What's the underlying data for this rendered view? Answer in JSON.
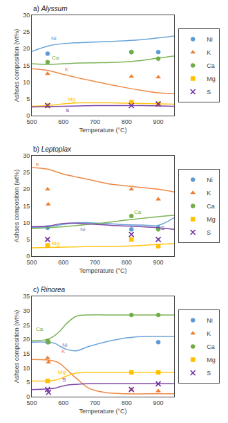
{
  "chart_data": [
    {
      "type": "line",
      "title": "a) Alyssum",
      "xlabel": "Temperature (°C)",
      "ylabel": "Ashses composition (wt%)",
      "xlim": [
        500,
        950
      ],
      "xticks": [
        500,
        600,
        700,
        800,
        900
      ],
      "ylim": [
        0,
        30
      ],
      "yticks": [
        0,
        5,
        10,
        15,
        20,
        25,
        30
      ],
      "grid": false,
      "legend": "right",
      "series": [
        {
          "name": "Ni",
          "type": "line",
          "line_style": "spline",
          "color": "#5b9bd5",
          "x": [
            500,
            560,
            600,
            650,
            700,
            750,
            800,
            850,
            900,
            950
          ],
          "values": [
            19.2,
            21.0,
            21.5,
            21.8,
            22.0,
            22.2,
            22.4,
            22.7,
            23.2,
            23.8
          ]
        },
        {
          "name": "Ni",
          "type": "scatter",
          "marker": "circle",
          "color": "#5b9bd5",
          "x": [
            550,
            815,
            900
          ],
          "values": [
            18.5,
            19.0,
            19.0
          ]
        },
        {
          "name": "K",
          "type": "line",
          "line_style": "spline",
          "color": "#ed7d31",
          "x": [
            500,
            550,
            600,
            650,
            700,
            750,
            800,
            850,
            900,
            950
          ],
          "values": [
            14.0,
            13.5,
            12.3,
            11.2,
            10.2,
            9.2,
            8.3,
            7.5,
            6.8,
            6.5
          ]
        },
        {
          "name": "K",
          "type": "scatter",
          "marker": "triangle",
          "color": "#ed7d31",
          "x": [
            550,
            815,
            900
          ],
          "values": [
            12.5,
            11.7,
            11.5
          ]
        },
        {
          "name": "Ca",
          "type": "line",
          "line_style": "spline",
          "color": "#70ad47",
          "x": [
            500,
            550,
            600,
            650,
            700,
            750,
            800,
            850,
            900,
            950
          ],
          "values": [
            15.5,
            15.3,
            15.5,
            15.7,
            15.8,
            15.9,
            16.1,
            16.5,
            17.2,
            17.8
          ]
        },
        {
          "name": "Ca",
          "type": "scatter",
          "marker": "circle",
          "color": "#70ad47",
          "x": [
            550,
            815,
            900
          ],
          "values": [
            16.0,
            19.0,
            17.0
          ]
        },
        {
          "name": "Mg",
          "type": "line",
          "line_style": "spline",
          "color": "#ffc000",
          "x": [
            500,
            550,
            600,
            650,
            700,
            750,
            800,
            850,
            900,
            950
          ],
          "values": [
            2.8,
            3.0,
            3.5,
            3.8,
            3.8,
            3.8,
            3.7,
            3.6,
            3.5,
            3.4
          ]
        },
        {
          "name": "Mg",
          "type": "scatter",
          "marker": "square",
          "color": "#ffc000",
          "x": [
            550,
            815,
            900
          ],
          "values": [
            3.0,
            4.0,
            3.5
          ]
        },
        {
          "name": "S",
          "type": "line",
          "line_style": "spline",
          "color": "#7030a0",
          "x": [
            500,
            550,
            600,
            650,
            700,
            750,
            800,
            850,
            900,
            950
          ],
          "values": [
            2.6,
            2.7,
            2.8,
            2.9,
            3.0,
            3.0,
            3.0,
            3.0,
            2.9,
            2.8
          ]
        },
        {
          "name": "S",
          "type": "scatter",
          "marker": "x",
          "color": "#7030a0",
          "x": [
            550,
            815,
            900
          ],
          "values": [
            3.0,
            3.0,
            3.5
          ]
        }
      ],
      "annotations": [
        {
          "text": "Ni",
          "x": 557,
          "y": 23.0,
          "color": "#5b9bd5"
        },
        {
          "text": "K",
          "x": 600,
          "y": 13.8,
          "color": "#ed7d31"
        },
        {
          "text": "Ca",
          "x": 558,
          "y": 17.2,
          "color": "#70ad47"
        },
        {
          "text": "Mg",
          "x": 610,
          "y": 4.8,
          "color": "#ffc000"
        },
        {
          "text": "S",
          "x": 602,
          "y": 1.5,
          "color": "#7030a0"
        }
      ]
    },
    {
      "type": "line",
      "title": "b) Leptoplax",
      "xlabel": "Temperature (°C)",
      "ylabel": "Ashses composition (wt%)",
      "xlim": [
        500,
        950
      ],
      "xticks": [
        500,
        600,
        700,
        800,
        900
      ],
      "ylim": [
        0,
        30
      ],
      "yticks": [
        0,
        5,
        10,
        15,
        20,
        25,
        30
      ],
      "grid": false,
      "legend": "right",
      "series": [
        {
          "name": "Ni",
          "type": "line",
          "line_style": "spline",
          "color": "#5b9bd5",
          "x": [
            500,
            550,
            600,
            640,
            680,
            720,
            760,
            800,
            850,
            900,
            950
          ],
          "values": [
            8.5,
            8.8,
            9.5,
            10.0,
            10.0,
            9.8,
            9.6,
            9.4,
            9.3,
            9.2,
            11.5
          ]
        },
        {
          "name": "Ni",
          "type": "scatter",
          "marker": "circle",
          "color": "#5b9bd5",
          "x": [
            550,
            815,
            900
          ],
          "values": [
            8.5,
            8.0,
            8.5
          ]
        },
        {
          "name": "K",
          "type": "line",
          "line_style": "spline",
          "color": "#ed7d31",
          "x": [
            500,
            550,
            600,
            650,
            700,
            750,
            800,
            850,
            900,
            950
          ],
          "values": [
            26.5,
            26.0,
            24.5,
            23.5,
            22.5,
            21.5,
            21.0,
            20.5,
            20.0,
            19.2
          ]
        },
        {
          "name": "K",
          "type": "scatter",
          "marker": "triangle",
          "color": "#ed7d31",
          "x": [
            550,
            552,
            815,
            900
          ],
          "values": [
            20.0,
            15.5,
            20.0,
            17.0
          ]
        },
        {
          "name": "Ca",
          "type": "line",
          "line_style": "spline",
          "color": "#70ad47",
          "x": [
            500,
            550,
            600,
            650,
            700,
            750,
            800,
            850,
            900,
            950
          ],
          "values": [
            8.3,
            8.5,
            8.8,
            9.2,
            9.7,
            10.2,
            10.8,
            11.3,
            11.8,
            12.2
          ]
        },
        {
          "name": "Ca",
          "type": "scatter",
          "marker": "circle",
          "color": "#70ad47",
          "x": [
            815,
            900
          ],
          "values": [
            12.0,
            8.0
          ]
        },
        {
          "name": "Mg",
          "type": "line",
          "line_style": "spline",
          "color": "#ffc000",
          "x": [
            500,
            550,
            600,
            650,
            700,
            750,
            800,
            850,
            900,
            950
          ],
          "values": [
            2.5,
            2.6,
            2.7,
            2.8,
            2.9,
            2.9,
            3.0,
            3.2,
            3.5,
            3.8
          ]
        },
        {
          "name": "Mg",
          "type": "scatter",
          "marker": "square",
          "color": "#ffc000",
          "x": [
            550,
            815,
            900
          ],
          "values": [
            3.2,
            5.0,
            3.0
          ]
        },
        {
          "name": "S",
          "type": "line",
          "line_style": "spline",
          "color": "#7030a0",
          "x": [
            500,
            550,
            600,
            650,
            700,
            750,
            800,
            850,
            900,
            950
          ],
          "values": [
            8.8,
            9.0,
            9.8,
            9.8,
            9.5,
            9.2,
            9.0,
            8.8,
            8.5,
            8.0
          ]
        },
        {
          "name": "S",
          "type": "scatter",
          "marker": "x",
          "color": "#7030a0",
          "x": [
            550,
            815,
            900
          ],
          "values": [
            5.0,
            6.5,
            5.0
          ]
        }
      ],
      "annotations": [
        {
          "text": "Ni",
          "x": 648,
          "y": 8.0,
          "color": "#5b9bd5"
        },
        {
          "text": "K",
          "x": 508,
          "y": 27.5,
          "color": "#ed7d31"
        },
        {
          "text": "Ca",
          "x": 818,
          "y": 13.2,
          "color": "#70ad47"
        },
        {
          "text": "Mg",
          "x": 560,
          "y": 3.8,
          "color": "#ffc000"
        },
        {
          "text": "S",
          "x": 905,
          "y": 8.3,
          "color": "#7030a0"
        }
      ]
    },
    {
      "type": "line",
      "title": "c) Rinorea",
      "xlabel": "Temperature (°C)",
      "ylabel": "Ashses composition (wt%)",
      "xlim": [
        500,
        950
      ],
      "xticks": [
        500,
        600,
        700,
        800,
        900
      ],
      "ylim": [
        0,
        35
      ],
      "yticks": [
        0,
        5,
        10,
        15,
        20,
        25,
        30,
        35
      ],
      "grid": false,
      "legend": "right",
      "series": [
        {
          "name": "Ni",
          "type": "line",
          "line_style": "spline",
          "color": "#5b9bd5",
          "x": [
            500,
            550,
            575,
            590,
            610,
            640,
            680,
            730,
            800,
            860,
            920,
            950
          ],
          "values": [
            19.0,
            19.0,
            18.5,
            17.5,
            16.5,
            16.0,
            17.5,
            19.0,
            20.5,
            21.0,
            21.0,
            21.0
          ]
        },
        {
          "name": "Ni",
          "type": "scatter",
          "marker": "circle",
          "color": "#5b9bd5",
          "x": [
            550,
            900
          ],
          "values": [
            19.0,
            19.0
          ]
        },
        {
          "name": "K",
          "type": "line",
          "line_style": "spline",
          "color": "#ed7d31",
          "x": [
            500,
            550,
            575,
            590,
            610,
            640,
            680,
            730,
            800,
            860,
            920,
            950
          ],
          "values": [
            13.0,
            12.8,
            12.3,
            11.5,
            9.5,
            6.5,
            3.0,
            1.5,
            1.0,
            1.0,
            1.0,
            1.0
          ]
        },
        {
          "name": "K",
          "type": "scatter",
          "marker": "triangle",
          "color": "#ed7d31",
          "x": [
            550,
            553,
            815,
            900
          ],
          "values": [
            13.5,
            12.0,
            2.5,
            2.0
          ]
        },
        {
          "name": "Ca",
          "type": "line",
          "line_style": "spline",
          "color": "#70ad47",
          "x": [
            500,
            550,
            575,
            590,
            610,
            640,
            680,
            730,
            800,
            860,
            920,
            950
          ],
          "values": [
            19.5,
            20.0,
            21.5,
            23.0,
            25.5,
            28.0,
            28.5,
            28.5,
            28.5,
            28.5,
            28.5,
            28.5
          ]
        },
        {
          "name": "Ca",
          "type": "scatter",
          "marker": "circle",
          "color": "#70ad47",
          "x": [
            550,
            553,
            815,
            900
          ],
          "values": [
            19.5,
            19.0,
            28.5,
            28.5
          ]
        },
        {
          "name": "Mg",
          "type": "line",
          "line_style": "spline",
          "color": "#ffc000",
          "x": [
            500,
            550,
            575,
            590,
            610,
            640,
            680,
            730,
            800,
            860,
            920,
            950
          ],
          "values": [
            5.5,
            5.5,
            5.8,
            6.3,
            7.2,
            8.2,
            8.5,
            8.5,
            8.5,
            8.5,
            8.5,
            8.5
          ]
        },
        {
          "name": "Mg",
          "type": "scatter",
          "marker": "square",
          "color": "#ffc000",
          "x": [
            550,
            815,
            900
          ],
          "values": [
            5.5,
            8.5,
            8.5
          ]
        },
        {
          "name": "S",
          "type": "line",
          "line_style": "spline",
          "color": "#7030a0",
          "x": [
            500,
            550,
            575,
            590,
            610,
            640,
            680,
            730,
            800,
            860,
            920,
            950
          ],
          "values": [
            2.5,
            2.7,
            3.0,
            3.5,
            4.0,
            4.3,
            4.5,
            4.5,
            4.5,
            4.5,
            4.5,
            4.5
          ]
        },
        {
          "name": "S",
          "type": "scatter",
          "marker": "x",
          "color": "#7030a0",
          "x": [
            550,
            553,
            815,
            900
          ],
          "values": [
            2.5,
            1.5,
            2.5,
            4.5
          ]
        }
      ],
      "annotations": [
        {
          "text": "Ni",
          "x": 592,
          "y": 18.0,
          "color": "#5b9bd5"
        },
        {
          "text": "K",
          "x": 590,
          "y": 15.8,
          "color": "#ed7d31"
        },
        {
          "text": "Ca",
          "x": 508,
          "y": 23.5,
          "color": "#70ad47"
        },
        {
          "text": "Mg",
          "x": 578,
          "y": 8.5,
          "color": "#ffc000"
        },
        {
          "text": "S",
          "x": 592,
          "y": 5.8,
          "color": "#7030a0"
        }
      ]
    }
  ]
}
